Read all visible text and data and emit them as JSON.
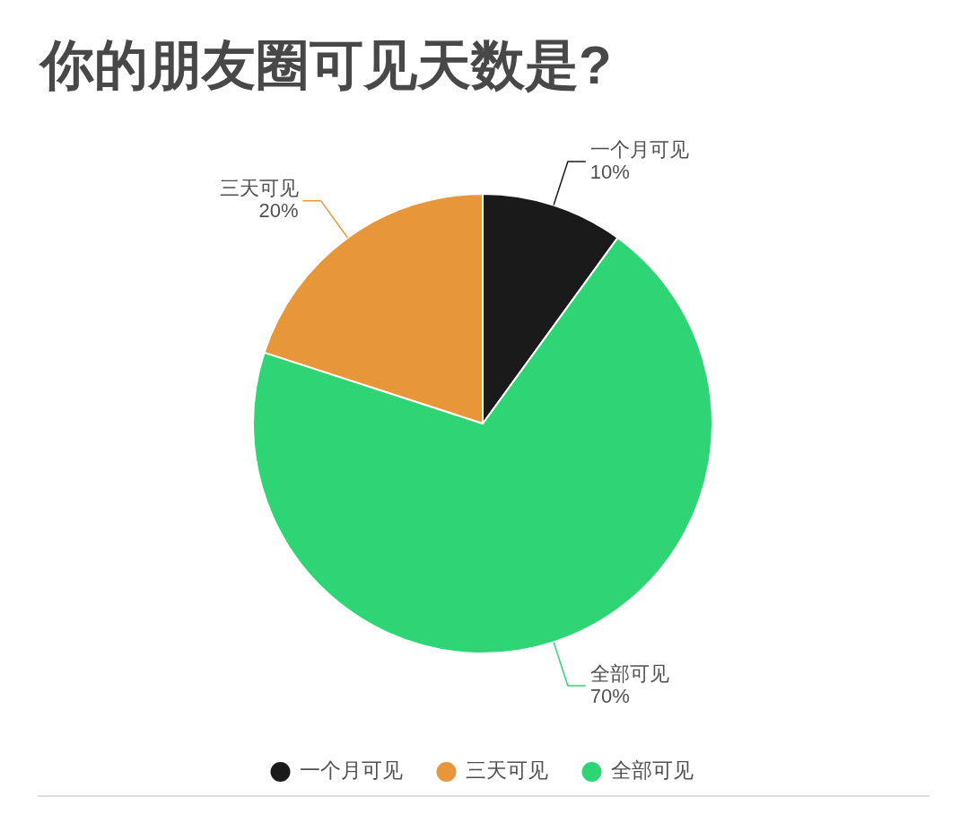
{
  "chart_data": {
    "type": "pie",
    "title": "你的朋友圈可见天数是?",
    "categories": [
      "一个月可见",
      "三天可见",
      "全部可见"
    ],
    "values": [
      10,
      20,
      70
    ],
    "colors": [
      "#1a1a1a",
      "#e8963a",
      "#2fd574"
    ],
    "value_labels": [
      "10%",
      "20%",
      "70%"
    ],
    "legend": "bottom"
  }
}
